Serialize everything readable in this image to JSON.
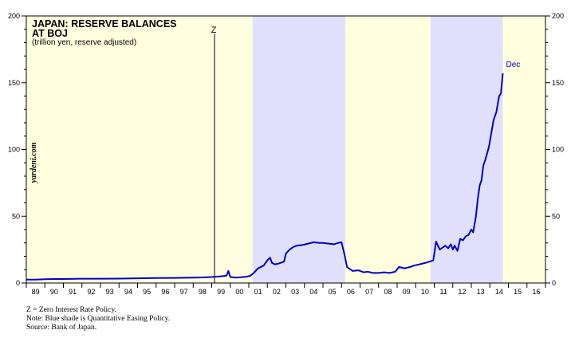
{
  "chart_data": {
    "type": "line",
    "title": "JAPAN: RESERVE BALANCES\nAT BOJ",
    "subtitle": "(trillion yen, reserve adjusted)",
    "watermark": "yardeni.com",
    "ylim": [
      0,
      200
    ],
    "yticks": [
      0,
      50,
      100,
      150,
      200
    ],
    "xlim": [
      1989.0,
      2017.0
    ],
    "xtick_labels": [
      "89",
      "90",
      "91",
      "92",
      "93",
      "94",
      "95",
      "96",
      "97",
      "98",
      "99",
      "00",
      "01",
      "02",
      "03",
      "04",
      "05",
      "06",
      "07",
      "08",
      "09",
      "10",
      "11",
      "12",
      "13",
      "14",
      "15",
      "16"
    ],
    "background_color": "#ffffe0",
    "shade_color": "#e0e0fc",
    "line_color": "#0000cc",
    "shaded_periods": [
      [
        2001.2,
        2006.2
      ],
      [
        2010.8,
        2014.7
      ]
    ],
    "zirp_marker": {
      "x": 1999.15,
      "label": "Z"
    },
    "end_label": "Dec",
    "series": [
      {
        "x": [
          1989.0,
          1989.5,
          1990.0,
          1990.5,
          1991.0,
          1992.0,
          1993.0,
          1994.0,
          1995.0,
          1996.0,
          1997.0,
          1998.0,
          1998.5,
          1999.0,
          1999.5,
          1999.8,
          1999.9,
          2000.0,
          2000.3,
          2000.6,
          2000.9,
          2001.1,
          2001.3,
          2001.5,
          2001.8,
          2002.0,
          2002.15,
          2002.25,
          2002.4,
          2002.6,
          2002.9,
          2003.0,
          2003.2,
          2003.4,
          2003.6,
          2003.9,
          2004.2,
          2004.5,
          2004.8,
          2005.0,
          2005.3,
          2005.6,
          2005.8,
          2006.0,
          2006.15,
          2006.3,
          2006.6,
          2006.9,
          2007.2,
          2007.4,
          2007.7,
          2008.0,
          2008.3,
          2008.6,
          2008.9,
          2009.1,
          2009.4,
          2009.7,
          2009.9,
          2010.2,
          2010.5,
          2010.75,
          2010.85,
          2010.95,
          2011.1,
          2011.3,
          2011.5,
          2011.6,
          2011.75,
          2011.9,
          2012.0,
          2012.1,
          2012.25,
          2012.4,
          2012.55,
          2012.7,
          2012.85,
          2013.0,
          2013.1,
          2013.25,
          2013.35,
          2013.45,
          2013.55,
          2013.65,
          2013.75,
          2013.85,
          2013.95,
          2014.05,
          2014.2,
          2014.35,
          2014.5,
          2014.6,
          2014.7
        ],
        "y": [
          2.5,
          2.5,
          2.8,
          3.0,
          3.0,
          3.2,
          3.2,
          3.3,
          3.5,
          3.7,
          3.8,
          4.0,
          4.2,
          4.5,
          5.0,
          5.5,
          9.0,
          4.5,
          4.0,
          4.3,
          4.8,
          5.5,
          8.0,
          11.0,
          13.0,
          17.0,
          19.0,
          15.0,
          14.0,
          14.5,
          16.0,
          22.0,
          25.0,
          27.0,
          28.0,
          28.5,
          29.5,
          30.5,
          30.0,
          30.0,
          29.5,
          29.0,
          30.0,
          30.5,
          22.0,
          12.0,
          9.0,
          9.5,
          8.0,
          8.5,
          7.5,
          7.5,
          8.0,
          7.5,
          8.5,
          12.0,
          11.0,
          12.0,
          13.0,
          14.0,
          15.0,
          16.0,
          16.5,
          17.0,
          31.0,
          25.0,
          27.0,
          28.0,
          26.0,
          29.0,
          25.0,
          28.0,
          24.0,
          33.0,
          32.0,
          35.0,
          36.0,
          40.0,
          38.0,
          50.0,
          63.0,
          73.0,
          77.0,
          88.0,
          92.0,
          97.0,
          102.0,
          110.0,
          122.0,
          128.0,
          140.0,
          142.0,
          157.0
        ]
      }
    ]
  },
  "notes": [
    "Z = Zero Interest Rate Policy.",
    "Note: Blue shade is Quantitative Easing Policy.",
    "Source: Bank of Japan."
  ]
}
